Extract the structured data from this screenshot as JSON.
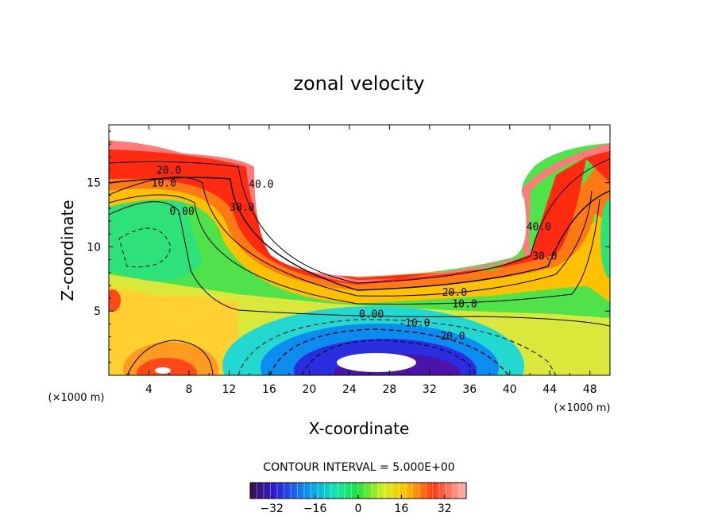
{
  "chart_data": {
    "type": "contour",
    "title": "zonal velocity",
    "xlabel": "X-coordinate",
    "ylabel": "Z-coordinate",
    "x_unit": "(×1000 m)",
    "y_unit": "(×1000 m)",
    "xlim": [
      0,
      50
    ],
    "ylim": [
      0,
      19.5
    ],
    "x_ticks": [
      4,
      8,
      12,
      16,
      20,
      24,
      28,
      32,
      36,
      40,
      44,
      48
    ],
    "y_ticks": [
      5,
      10,
      15
    ],
    "contour_interval_label": "CONTOUR INTERVAL = 5.000E+00",
    "contour_labels": [
      {
        "text": "20.0",
        "x": 6,
        "z": 15.7
      },
      {
        "text": "10.0",
        "x": 5.5,
        "z": 14.7
      },
      {
        "text": "0.00",
        "x": 7.3,
        "z": 12.5
      },
      {
        "text": "40.0",
        "x": 15.2,
        "z": 14.6
      },
      {
        "text": "30.0",
        "x": 13.3,
        "z": 12.8
      },
      {
        "text": "40.0",
        "x": 42.9,
        "z": 11.3
      },
      {
        "text": "30.0",
        "x": 43.5,
        "z": 9.0
      },
      {
        "text": "20.0",
        "x": 34.5,
        "z": 6.2
      },
      {
        "text": "10.0",
        "x": 35.5,
        "z": 5.3
      },
      {
        "text": "0.00",
        "x": 26.2,
        "z": 4.5
      },
      {
        "text": "-10.0",
        "x": 30.5,
        "z": 3.8
      },
      {
        "text": "-20.0",
        "x": 34,
        "z": 2.8
      }
    ],
    "colorbar": {
      "min": -40,
      "max": 40,
      "tick_values": [
        -32,
        -16,
        0,
        16,
        32
      ],
      "tick_labels": [
        "−32",
        "−16",
        "0",
        "16",
        "32"
      ]
    },
    "fields": {
      "ocean": "white region above the top surface",
      "features": "negative core near x=28, z=0.5 ~ -40; positive jet near the top boundary ~ +40"
    }
  }
}
